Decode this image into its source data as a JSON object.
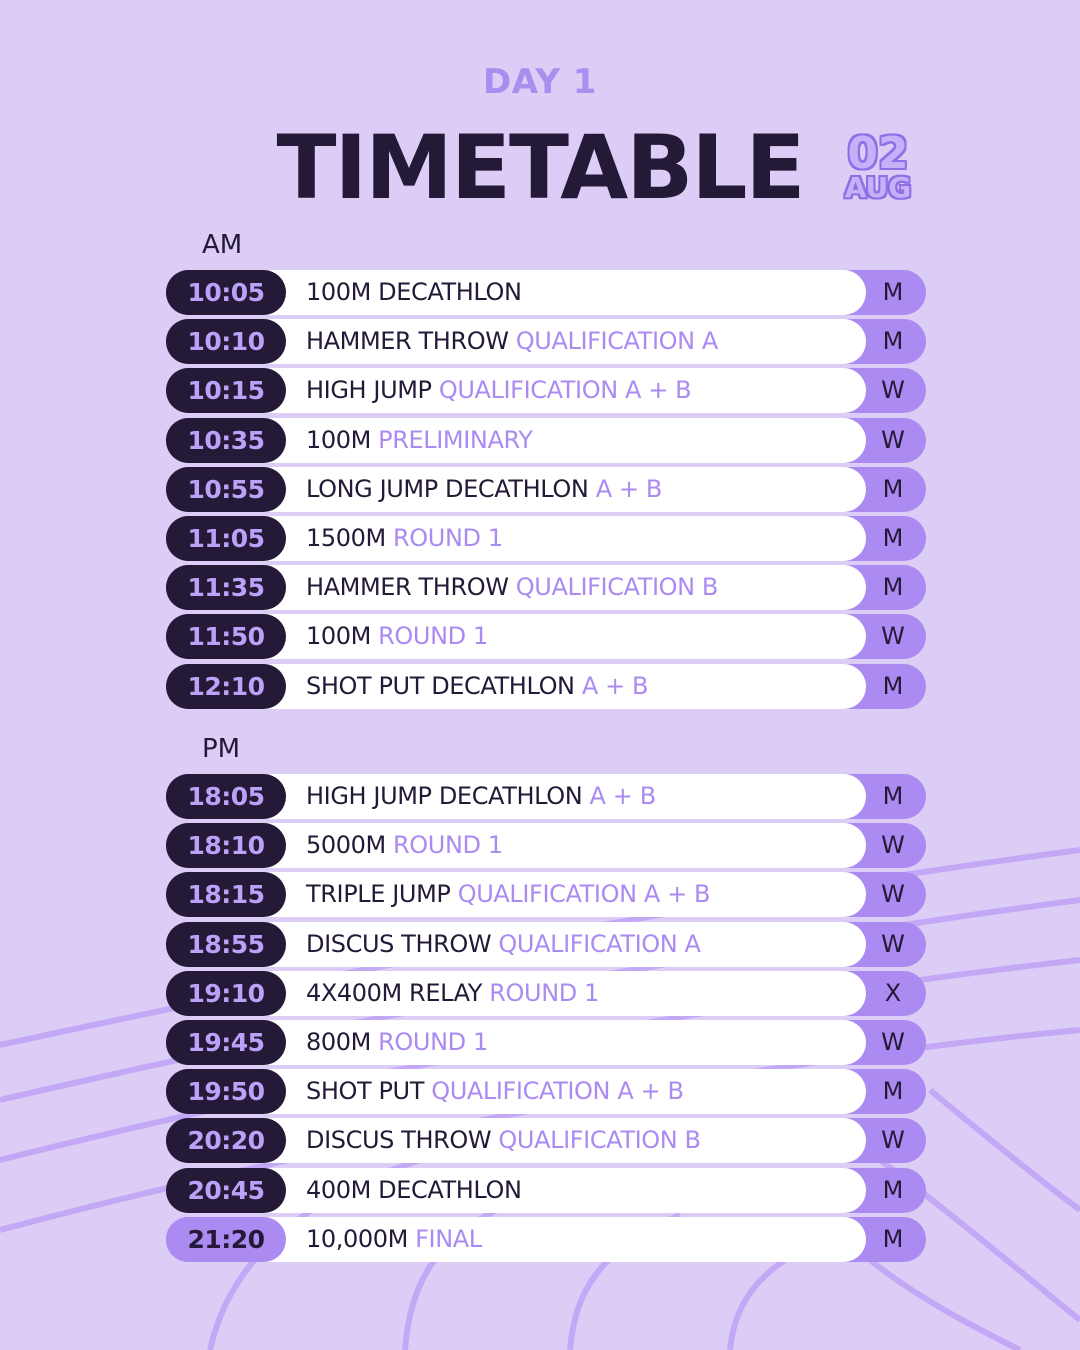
{
  "header": {
    "day": "DAY 1",
    "title": "TIMETABLE",
    "date_day": "02",
    "date_month": "AUG"
  },
  "colors": {
    "background": "#dccdf7",
    "dark": "#241a38",
    "accent": "#ab8af2",
    "row_bg": "#ffffff"
  },
  "am": {
    "label": "AM",
    "rows": [
      {
        "time": "10:05",
        "main": "100M DECATHLON",
        "sub": "",
        "cat": "M"
      },
      {
        "time": "10:10",
        "main": "HAMMER THROW",
        "sub": "QUALIFICATION A",
        "cat": "M"
      },
      {
        "time": "10:15",
        "main": "HIGH JUMP",
        "sub": "QUALIFICATION A + B",
        "cat": "W"
      },
      {
        "time": "10:35",
        "main": "100M",
        "sub": "PRELIMINARY",
        "cat": "W"
      },
      {
        "time": "10:55",
        "main": "LONG JUMP DECATHLON",
        "sub": "A + B",
        "cat": "M"
      },
      {
        "time": "11:05",
        "main": "1500M",
        "sub": "ROUND 1",
        "cat": "M"
      },
      {
        "time": "11:35",
        "main": "HAMMER THROW",
        "sub": "QUALIFICATION B",
        "cat": "M"
      },
      {
        "time": "11:50",
        "main": "100M",
        "sub": "ROUND 1",
        "cat": "W"
      },
      {
        "time": "12:10",
        "main": "SHOT PUT DECATHLON",
        "sub": "A + B",
        "cat": "M"
      }
    ]
  },
  "pm": {
    "label": "PM",
    "rows": [
      {
        "time": "18:05",
        "main": "HIGH JUMP DECATHLON",
        "sub": "A + B",
        "cat": "M"
      },
      {
        "time": "18:10",
        "main": "5000M",
        "sub": "ROUND 1",
        "cat": "W"
      },
      {
        "time": "18:15",
        "main": "TRIPLE JUMP",
        "sub": "QUALIFICATION A + B",
        "cat": "W"
      },
      {
        "time": "18:55",
        "main": "DISCUS THROW",
        "sub": "QUALIFICATION A",
        "cat": "W"
      },
      {
        "time": "19:10",
        "main": "4X400M RELAY",
        "sub": "ROUND 1",
        "cat": "X"
      },
      {
        "time": "19:45",
        "main": "800M",
        "sub": "ROUND 1",
        "cat": "W"
      },
      {
        "time": "19:50",
        "main": "SHOT PUT",
        "sub": "QUALIFICATION A + B",
        "cat": "M"
      },
      {
        "time": "20:20",
        "main": "DISCUS THROW",
        "sub": "QUALIFICATION B",
        "cat": "W"
      },
      {
        "time": "20:45",
        "main": "400M DECATHLON",
        "sub": "",
        "cat": "M"
      },
      {
        "time": "21:20",
        "main": "10,000M",
        "sub": "FINAL",
        "cat": "M",
        "highlight": true
      }
    ]
  }
}
